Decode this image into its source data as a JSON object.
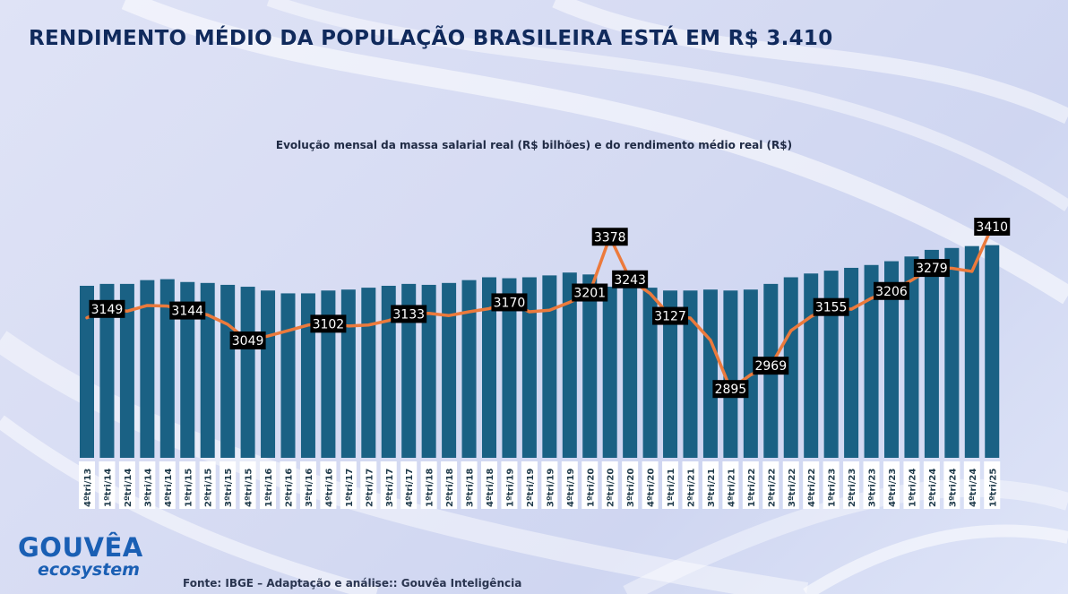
{
  "header": {
    "title": "RENDIMENTO MÉDIO DA POPULAÇÃO BRASILEIRA ESTÁ EM R$ 3.410",
    "subtitle": "Evolução mensal da massa salarial real (R$ bilhões) e do rendimento médio real (R$)"
  },
  "footer": {
    "source": "Fonte: IBGE – Adaptação e análise:: Gouvêa Inteligência",
    "logo_main": "GOUVÊA",
    "logo_sub": "ecosystem"
  },
  "colors": {
    "bar": "#1a6184",
    "line": "#ec7a3c",
    "label_bg": "#000000",
    "label_text": "#ffffff",
    "title": "#102a5c",
    "logo": "#1a5fb4"
  },
  "chart_data": {
    "type": "bar",
    "title": "Evolução mensal da massa salarial real (R$ bilhões) e do rendimento médio real (R$)",
    "categories": [
      "4ºtri/13",
      "1ºtri/14",
      "2ºtri/14",
      "3ºtri/14",
      "4ºtri/14",
      "1ºtri/15",
      "2ºtri/15",
      "3ºtri/15",
      "4ºtri/15",
      "1ºtri/16",
      "2ºtri/16",
      "3ºtri/16",
      "4ºtri/16",
      "1ºtri/17",
      "2ºtri/17",
      "3ºtri/17",
      "4ºtri/17",
      "1ºtri/18",
      "2ºtri/18",
      "3ºtri/18",
      "4ºtri/18",
      "1ºtri/19",
      "2ºtri/19",
      "3ºtri/19",
      "4ºtri/19",
      "1ºtri/20",
      "2ºtri/20",
      "3ºtri/20",
      "4ºtri/20",
      "1ºtri/21",
      "2ºtri/21",
      "3ºtri/21",
      "4ºtri/21",
      "1ºtri/22",
      "2ºtri/22",
      "3ºtri/22",
      "4ºtri/22",
      "1ºtri/23",
      "2ºtri/23",
      "3ºtri/23",
      "4ºtri/23",
      "1ºtri/24",
      "2ºtri/24",
      "3ºtri/24",
      "4ºtri/24",
      "1ºtri/25"
    ],
    "series": [
      {
        "kind": "bar",
        "values": [
          282,
          284,
          284,
          288,
          289,
          286,
          285,
          283,
          281,
          277,
          274,
          274,
          277,
          278,
          280,
          282,
          284,
          283,
          285,
          288,
          291,
          290,
          291,
          293,
          296,
          294,
          281,
          281,
          280,
          277,
          277,
          278,
          277,
          278,
          284,
          291,
          295,
          298,
          301,
          304,
          308,
          313,
          320,
          322,
          324,
          325
        ]
      },
      {
        "kind": "line",
        "values": [
          3121,
          3149,
          3142,
          3160,
          3158,
          3144,
          3130,
          3100,
          3049,
          3063,
          3080,
          3098,
          3102,
          3095,
          3098,
          3112,
          3133,
          3135,
          3128,
          3140,
          3150,
          3170,
          3140,
          3145,
          3170,
          3201,
          3378,
          3243,
          3198,
          3127,
          3120,
          3050,
          2895,
          2940,
          2969,
          3080,
          3125,
          3155,
          3148,
          3183,
          3206,
          3240,
          3279,
          3278,
          3268,
          3410
        ]
      }
    ],
    "labels": [
      {
        "i": 1,
        "v": "3149"
      },
      {
        "i": 5,
        "v": "3144"
      },
      {
        "i": 8,
        "v": "3049"
      },
      {
        "i": 12,
        "v": "3102"
      },
      {
        "i": 16,
        "v": "3133"
      },
      {
        "i": 21,
        "v": "3170"
      },
      {
        "i": 25,
        "v": "3201"
      },
      {
        "i": 26,
        "v": "3378"
      },
      {
        "i": 27,
        "v": "3243"
      },
      {
        "i": 29,
        "v": "3127"
      },
      {
        "i": 32,
        "v": "2895"
      },
      {
        "i": 34,
        "v": "2969"
      },
      {
        "i": 37,
        "v": "3155"
      },
      {
        "i": 40,
        "v": "3206"
      },
      {
        "i": 42,
        "v": "3279"
      },
      {
        "i": 45,
        "v": "3410"
      }
    ]
  }
}
